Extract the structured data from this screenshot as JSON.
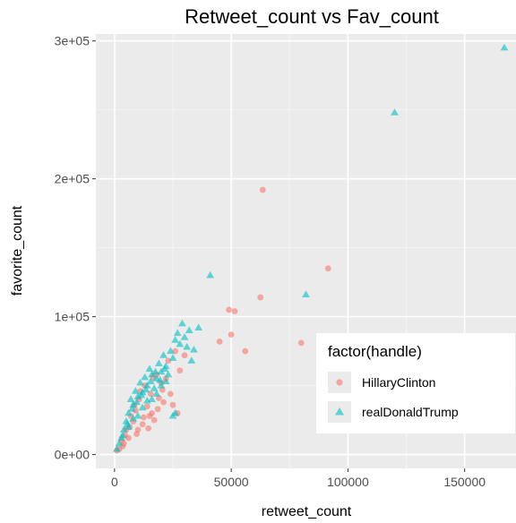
{
  "chart_data": {
    "type": "scatter",
    "title": "Retweet_count vs Fav_count",
    "xlabel": "retweet_count",
    "ylabel": "favorite_count",
    "xlim": [
      -8000,
      172000
    ],
    "ylim": [
      -10000,
      305000
    ],
    "x_ticks": [
      0,
      50000,
      100000,
      150000
    ],
    "x_tick_labels": [
      "0",
      "50000",
      "100000",
      "150000"
    ],
    "y_ticks": [
      0,
      100000,
      200000,
      300000
    ],
    "y_tick_labels": [
      "0e+00",
      "1e+05",
      "2e+05",
      "3e+05"
    ],
    "grid": true,
    "legend": {
      "title": "factor(handle)",
      "position": "bottom-right"
    },
    "series": [
      {
        "name": "HillaryClinton",
        "color": "#F8766D",
        "marker": "circle",
        "points": [
          [
            63500,
            192000
          ],
          [
            91500,
            135000
          ],
          [
            62500,
            114000
          ],
          [
            49000,
            105000
          ],
          [
            51500,
            104000
          ],
          [
            50000,
            87000
          ],
          [
            45000,
            82000
          ],
          [
            56000,
            75000
          ],
          [
            80000,
            81000
          ],
          [
            26000,
            75000
          ],
          [
            23000,
            68000
          ],
          [
            30000,
            72000
          ],
          [
            18000,
            58000
          ],
          [
            20000,
            52000
          ],
          [
            28000,
            61000
          ],
          [
            24000,
            44000
          ],
          [
            21000,
            38000
          ],
          [
            15000,
            28000
          ],
          [
            12000,
            22000
          ],
          [
            10000,
            18000
          ],
          [
            8000,
            24000
          ],
          [
            14000,
            35000
          ],
          [
            16000,
            30000
          ],
          [
            6000,
            12000
          ],
          [
            4000,
            8000
          ],
          [
            2000,
            4000
          ],
          [
            9000,
            32000
          ],
          [
            11000,
            46000
          ],
          [
            13000,
            50000
          ],
          [
            7000,
            28000
          ],
          [
            5000,
            18000
          ],
          [
            3000,
            10000
          ],
          [
            1000,
            3000
          ],
          [
            17000,
            25000
          ],
          [
            19000,
            41000
          ],
          [
            22000,
            55000
          ],
          [
            25000,
            36000
          ],
          [
            27000,
            30000
          ],
          [
            9500,
            15000
          ],
          [
            12500,
            27000
          ],
          [
            15500,
            44000
          ],
          [
            8500,
            36000
          ],
          [
            6500,
            20000
          ],
          [
            14500,
            19000
          ],
          [
            18500,
            33000
          ],
          [
            10500,
            40000
          ],
          [
            4500,
            14000
          ],
          [
            3500,
            6000
          ],
          [
            20500,
            47000
          ],
          [
            16500,
            56000
          ]
        ]
      },
      {
        "name": "realDonaldTrump",
        "color": "#00BFC4",
        "marker": "triangle",
        "points": [
          [
            167000,
            295000
          ],
          [
            120000,
            248000
          ],
          [
            82000,
            116000
          ],
          [
            41000,
            130000
          ],
          [
            32000,
            90000
          ],
          [
            36000,
            92000
          ],
          [
            30000,
            85000
          ],
          [
            28000,
            80000
          ],
          [
            34000,
            76000
          ],
          [
            27000,
            88000
          ],
          [
            25000,
            70000
          ],
          [
            22000,
            64000
          ],
          [
            20000,
            60000
          ],
          [
            18000,
            55000
          ],
          [
            16000,
            58000
          ],
          [
            14000,
            50000
          ],
          [
            12000,
            45000
          ],
          [
            10000,
            42000
          ],
          [
            8000,
            36000
          ],
          [
            6000,
            30000
          ],
          [
            5000,
            24000
          ],
          [
            4000,
            18000
          ],
          [
            3000,
            12000
          ],
          [
            2000,
            8000
          ],
          [
            1000,
            4000
          ],
          [
            15000,
            62000
          ],
          [
            17000,
            48000
          ],
          [
            13000,
            56000
          ],
          [
            11000,
            52000
          ],
          [
            9000,
            46000
          ],
          [
            7000,
            40000
          ],
          [
            19000,
            66000
          ],
          [
            21000,
            72000
          ],
          [
            23000,
            58000
          ],
          [
            24000,
            75000
          ],
          [
            26000,
            83000
          ],
          [
            29000,
            95000
          ],
          [
            31000,
            78000
          ],
          [
            26000,
            30000
          ],
          [
            33000,
            68000
          ],
          [
            18000,
            44000
          ],
          [
            14000,
            39000
          ],
          [
            12000,
            34000
          ],
          [
            10000,
            28000
          ],
          [
            8000,
            26000
          ],
          [
            6000,
            20000
          ],
          [
            16000,
            40000
          ],
          [
            20000,
            50000
          ],
          [
            22000,
            53000
          ],
          [
            25000,
            28000
          ],
          [
            7500,
            33000
          ],
          [
            9500,
            38000
          ],
          [
            11500,
            43000
          ],
          [
            13500,
            47000
          ],
          [
            15500,
            53000
          ],
          [
            17500,
            60000
          ],
          [
            19500,
            54000
          ],
          [
            21500,
            62000
          ],
          [
            5500,
            22000
          ],
          [
            3500,
            14000
          ]
        ]
      }
    ]
  }
}
